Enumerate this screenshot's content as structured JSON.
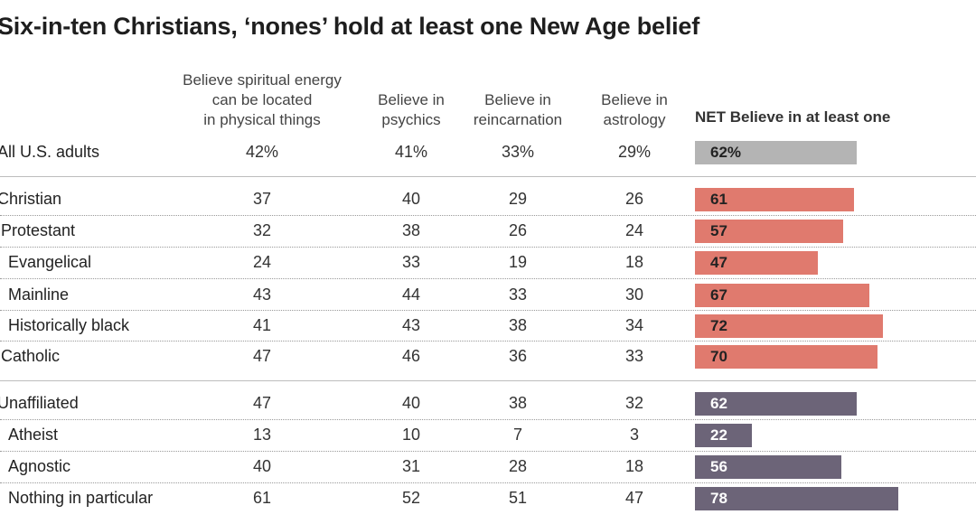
{
  "title": "Six-in-ten Christians, ‘nones’ hold at least one New Age belief",
  "chart_data": {
    "type": "table",
    "title": "Six-in-ten Christians, ‘nones’ hold at least one New Age belief",
    "columns": [
      "Believe spiritual energy\ncan be located\nin physical things",
      "Believe in\npsychics",
      "Believe in\nreincarnation",
      "Believe in\nastrology"
    ],
    "net_label": "NET Believe in at least one",
    "bar_max": 100,
    "colors": {
      "all": "#b4b4b4",
      "christian": "#e07a6e",
      "unaffiliated": "#6c6478"
    },
    "rows": [
      {
        "label": "All U.S. adults",
        "group": "all",
        "indent": 0,
        "values": [
          "42%",
          "41%",
          "33%",
          "29%"
        ],
        "net": 62,
        "net_label": "62%"
      },
      {
        "label": "Christian",
        "group": "christian",
        "indent": 0,
        "values": [
          "37",
          "40",
          "29",
          "26"
        ],
        "net": 61,
        "net_label": "61"
      },
      {
        "label": "Protestant",
        "group": "christian",
        "indent": 1,
        "values": [
          "32",
          "38",
          "26",
          "24"
        ],
        "net": 57,
        "net_label": "57"
      },
      {
        "label": "Evangelical",
        "group": "christian",
        "indent": 2,
        "values": [
          "24",
          "33",
          "19",
          "18"
        ],
        "net": 47,
        "net_label": "47"
      },
      {
        "label": "Mainline",
        "group": "christian",
        "indent": 2,
        "values": [
          "43",
          "44",
          "33",
          "30"
        ],
        "net": 67,
        "net_label": "67"
      },
      {
        "label": "Historically black",
        "group": "christian",
        "indent": 2,
        "values": [
          "41",
          "43",
          "38",
          "34"
        ],
        "net": 72,
        "net_label": "72"
      },
      {
        "label": "Catholic",
        "group": "christian",
        "indent": 1,
        "values": [
          "47",
          "46",
          "36",
          "33"
        ],
        "net": 70,
        "net_label": "70"
      },
      {
        "label": "Unaffiliated",
        "group": "unaffiliated",
        "indent": 0,
        "values": [
          "47",
          "40",
          "38",
          "32"
        ],
        "net": 62,
        "net_label": "62"
      },
      {
        "label": "Atheist",
        "group": "unaffiliated",
        "indent": 2,
        "values": [
          "13",
          "10",
          "7",
          "3"
        ],
        "net": 22,
        "net_label": "22"
      },
      {
        "label": "Agnostic",
        "group": "unaffiliated",
        "indent": 2,
        "values": [
          "40",
          "31",
          "28",
          "18"
        ],
        "net": 56,
        "net_label": "56"
      },
      {
        "label": "Nothing in particular",
        "group": "unaffiliated",
        "indent": 2,
        "values": [
          "61",
          "52",
          "51",
          "47"
        ],
        "net": 78,
        "net_label": "78"
      }
    ]
  }
}
